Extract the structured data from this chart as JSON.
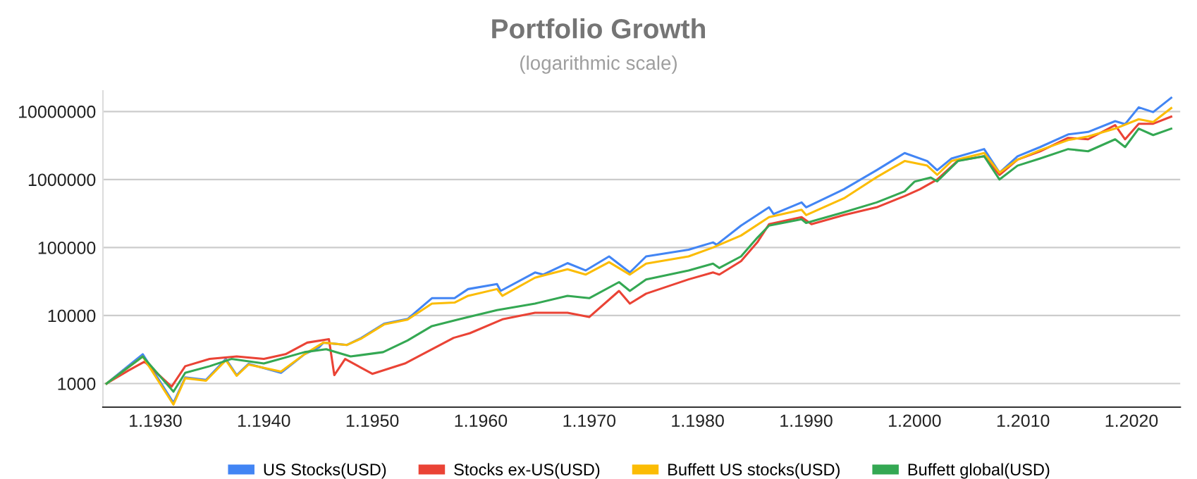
{
  "chart_data": {
    "type": "line",
    "title": "Portfolio Growth",
    "subtitle": "(logarithmic scale)",
    "log": "y",
    "grid": "y",
    "legend": "bottom",
    "xlim": [
      "1925-03",
      "2024-07"
    ],
    "ylim": [
      450,
      20000000
    ],
    "xticks": [
      {
        "value": "1930-01",
        "label": "1.1930"
      },
      {
        "value": "1940-01",
        "label": "1.1940"
      },
      {
        "value": "1950-01",
        "label": "1.1950"
      },
      {
        "value": "1960-01",
        "label": "1.1960"
      },
      {
        "value": "1970-01",
        "label": "1.1970"
      },
      {
        "value": "1980-01",
        "label": "1.1980"
      },
      {
        "value": "1990-01",
        "label": "1.1990"
      },
      {
        "value": "2000-01",
        "label": "1.2000"
      },
      {
        "value": "2010-01",
        "label": "1.2010"
      },
      {
        "value": "2020-01",
        "label": "1.2020"
      }
    ],
    "yticks": [
      1000,
      10000,
      100000,
      1000000,
      10000000
    ],
    "series": [
      {
        "name": "US Stocks(USD)",
        "color": "#4285f4",
        "x": [
          "1925-07",
          "1928-11",
          "1931-09",
          "1932-10",
          "1934-09",
          "1936-07",
          "1937-07",
          "1938-08",
          "1941-08",
          "1943-10",
          "1945-02",
          "1945-07",
          "1947-09",
          "1949-01",
          "1951-02",
          "1953-04",
          "1955-07",
          "1957-08",
          "1958-11",
          "1961-07",
          "1961-11",
          "1965-01",
          "1965-10",
          "1968-01",
          "1969-09",
          "1971-11",
          "1973-10",
          "1975-04",
          "1979-03",
          "1981-06",
          "1981-10",
          "1984-01",
          "1986-08",
          "1987-01",
          "1989-08",
          "1990-01",
          "1993-07",
          "1996-07",
          "1999-02",
          "2001-03",
          "2002-02",
          "2003-06",
          "2006-06",
          "2007-11",
          "2009-07",
          "2011-08",
          "2014-03",
          "2016-01",
          "2018-07",
          "2019-06",
          "2020-09",
          "2022-01",
          "2023-09"
        ],
        "values": [
          1000,
          2700,
          520,
          1230,
          1130,
          2300,
          1330,
          1950,
          1440,
          2700,
          3400,
          4000,
          3700,
          4700,
          7600,
          8900,
          18000,
          18000,
          24500,
          29000,
          23000,
          43000,
          40000,
          59000,
          46000,
          74000,
          43000,
          74000,
          93000,
          119000,
          110000,
          210000,
          390000,
          310000,
          460000,
          390000,
          720000,
          1370000,
          2450000,
          1870000,
          1370000,
          2040000,
          2800000,
          1260000,
          2190000,
          3000000,
          4600000,
          5000000,
          7200000,
          6500000,
          11500000,
          9800000,
          15900000
        ]
      },
      {
        "name": "Stocks ex-US(USD)",
        "color": "#ea4335",
        "x": [
          "1925-07",
          "1927-07",
          "1929-01",
          "1931-07",
          "1932-10",
          "1935-01",
          "1937-07",
          "1940-01",
          "1942-01",
          "1944-01",
          "1946-01",
          "1946-07",
          "1947-07",
          "1950-01",
          "1953-01",
          "1955-01",
          "1957-07",
          "1959-01",
          "1962-01",
          "1965-01",
          "1968-01",
          "1970-01",
          "1972-10",
          "1973-10",
          "1975-04",
          "1979-03",
          "1981-06",
          "1982-01",
          "1984-01",
          "1985-07",
          "1986-08",
          "1989-08",
          "1990-07",
          "1993-07",
          "1996-07",
          "1999-02",
          "2000-07",
          "2002-02",
          "2004-01",
          "2006-06",
          "2007-11",
          "2009-07",
          "2011-08",
          "2014-03",
          "2016-01",
          "2018-07",
          "2019-06",
          "2020-09",
          "2022-01",
          "2023-09"
        ],
        "values": [
          1000,
          1550,
          2100,
          900,
          1800,
          2300,
          2500,
          2300,
          2700,
          4000,
          4500,
          1330,
          2300,
          1390,
          1970,
          2900,
          4700,
          5500,
          8800,
          11000,
          11000,
          9500,
          23000,
          15000,
          21000,
          34000,
          43000,
          40000,
          63000,
          119000,
          220000,
          280000,
          220000,
          300000,
          390000,
          570000,
          720000,
          1000000,
          1900000,
          2200000,
          1170000,
          1960000,
          2600000,
          4100000,
          3900000,
          6300000,
          3900000,
          6600000,
          6600000,
          8400000
        ]
      },
      {
        "name": "Buffett US stocks(USD)",
        "color": "#fbbc04",
        "x": [
          "1925-07",
          "1928-11",
          "1931-09",
          "1932-10",
          "1934-09",
          "1936-07",
          "1937-07",
          "1938-08",
          "1941-08",
          "1943-10",
          "1945-07",
          "1947-09",
          "1949-01",
          "1951-02",
          "1953-04",
          "1955-07",
          "1957-08",
          "1958-11",
          "1961-07",
          "1962-01",
          "1965-01",
          "1968-01",
          "1969-09",
          "1971-11",
          "1973-10",
          "1975-04",
          "1979-03",
          "1981-06",
          "1984-01",
          "1986-08",
          "1989-08",
          "1990-01",
          "1993-07",
          "1996-07",
          "1999-02",
          "2001-03",
          "2002-02",
          "2003-06",
          "2006-06",
          "2007-11",
          "2009-07",
          "2011-08",
          "2014-03",
          "2016-01",
          "2018-07",
          "2020-09",
          "2022-01",
          "2023-09"
        ],
        "values": [
          1000,
          2500,
          490,
          1200,
          1100,
          2200,
          1300,
          1900,
          1500,
          2700,
          4000,
          3700,
          4600,
          7400,
          8700,
          15000,
          15500,
          19500,
          24500,
          19500,
          36000,
          48000,
          40000,
          61000,
          40000,
          58000,
          74000,
          100000,
          150000,
          280000,
          360000,
          300000,
          530000,
          1080000,
          1870000,
          1600000,
          1170000,
          1870000,
          2450000,
          1260000,
          1960000,
          2700000,
          3800000,
          4300000,
          5600000,
          7700000,
          7000000,
          11200000
        ]
      },
      {
        "name": "Buffett global(USD)",
        "color": "#34a853",
        "x": [
          "1925-07",
          "1928-11",
          "1931-09",
          "1932-10",
          "1935-01",
          "1937-01",
          "1940-01",
          "1943-10",
          "1945-10",
          "1948-01",
          "1951-01",
          "1953-04",
          "1955-07",
          "1958-01",
          "1961-07",
          "1965-01",
          "1968-01",
          "1970-01",
          "1972-10",
          "1973-10",
          "1975-04",
          "1979-03",
          "1981-06",
          "1982-01",
          "1984-01",
          "1985-07",
          "1986-08",
          "1989-08",
          "1990-01",
          "1993-07",
          "1996-07",
          "1999-02",
          "2000-01",
          "2001-07",
          "2002-02",
          "2004-01",
          "2006-06",
          "2007-11",
          "2009-07",
          "2011-08",
          "2014-03",
          "2016-01",
          "2018-07",
          "2019-06",
          "2020-09",
          "2022-01",
          "2023-09"
        ],
        "values": [
          1000,
          2500,
          760,
          1440,
          1800,
          2300,
          1970,
          2900,
          3200,
          2500,
          2900,
          4300,
          7000,
          8800,
          12000,
          15000,
          19500,
          18000,
          31000,
          23000,
          34000,
          46000,
          58000,
          50000,
          74000,
          139000,
          210000,
          260000,
          230000,
          330000,
          460000,
          670000,
          930000,
          1070000,
          940000,
          1870000,
          2200000,
          1000000,
          1600000,
          2040000,
          2800000,
          2600000,
          3900000,
          3000000,
          5600000,
          4500000,
          5600000
        ]
      }
    ]
  }
}
